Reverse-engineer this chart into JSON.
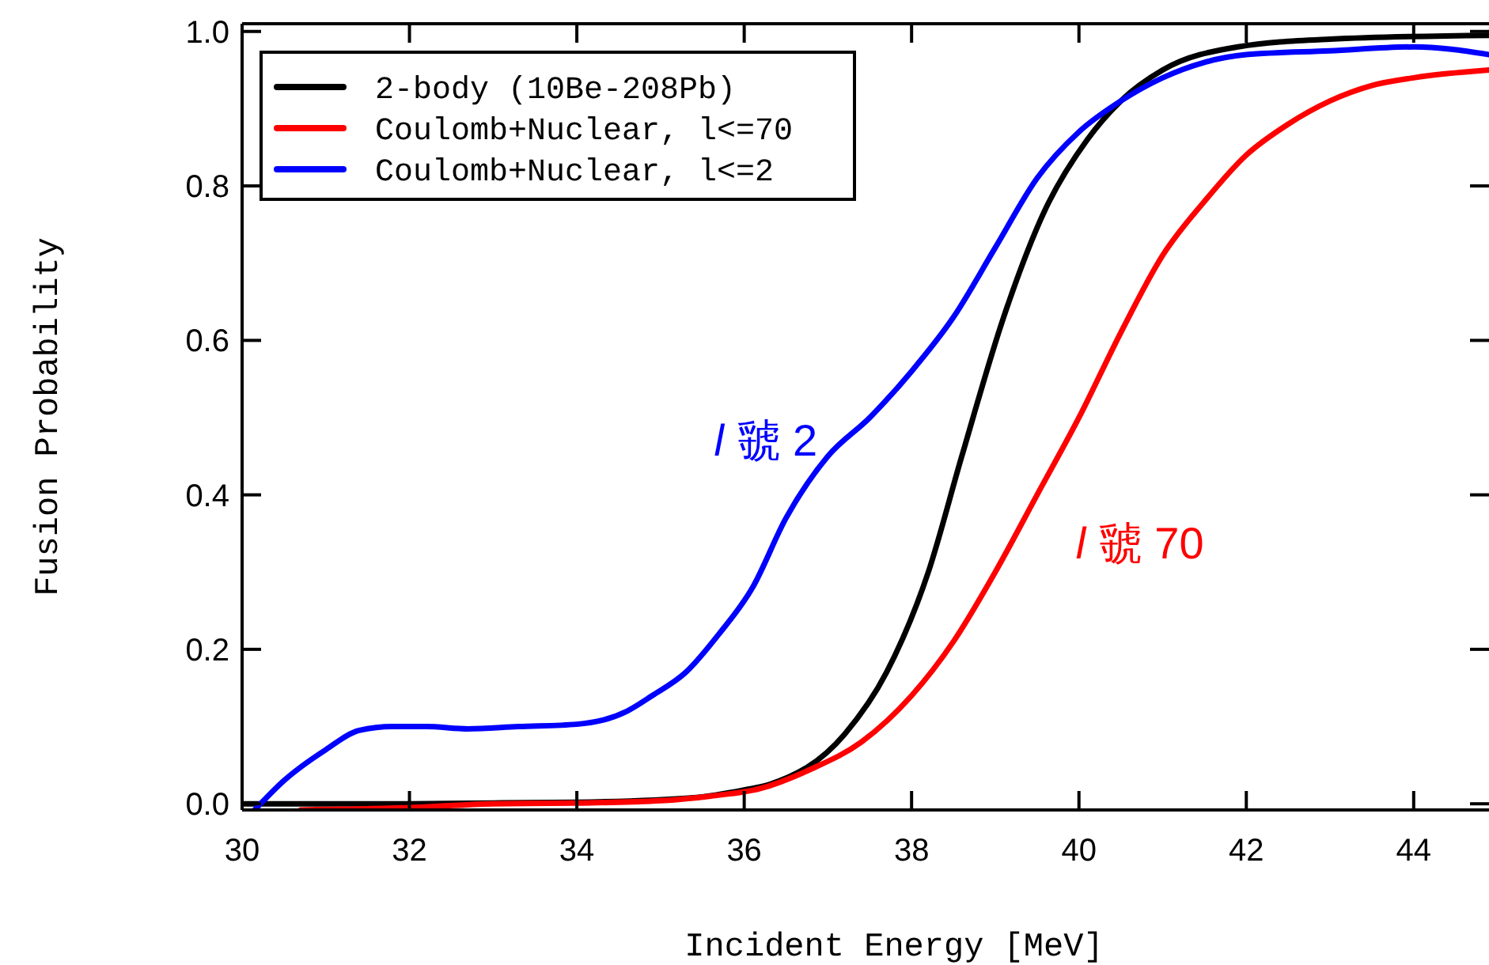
{
  "chart_data": {
    "type": "line",
    "xlabel": "Incident Energy [MeV]",
    "ylabel": "Fusion Probability",
    "xlim": [
      30,
      44.9
    ],
    "ylim": [
      -0.008,
      1.01
    ],
    "xticks": [
      30,
      32,
      34,
      36,
      38,
      40,
      42,
      44
    ],
    "yticks": [
      {
        "value": 0,
        "label": "0.0"
      },
      {
        "value": 0.2,
        "label": "0.2"
      },
      {
        "value": 0.4,
        "label": "0.4"
      },
      {
        "value": 0.6,
        "label": "0.6"
      },
      {
        "value": 0.8,
        "label": "0.8"
      },
      {
        "value": 1,
        "label": "1.0"
      }
    ],
    "legend": "top left",
    "grid": false,
    "line_style": "solid",
    "marker": "none",
    "series": [
      {
        "name": "2-body (10Be-208Pb)",
        "color": "#000000",
        "x": [
          30,
          31,
          32,
          33,
          34,
          35.4,
          36,
          36.3,
          37.2,
          37.7,
          38.2,
          38.6,
          39.1,
          39.6,
          40.1,
          40.5,
          41,
          41.9,
          43,
          44.9
        ],
        "values": [
          0,
          0,
          0,
          0.001,
          0.002,
          0.008,
          0.018,
          0.025,
          0.09,
          0.17,
          0.3,
          0.45,
          0.63,
          0.77,
          0.86,
          0.91,
          0.95,
          0.98,
          0.99,
          0.995
        ]
      },
      {
        "name": "Coulomb+Nuclear, l<=70",
        "color": "#ff0000",
        "x": [
          30.7,
          32,
          33,
          34,
          35,
          35.6,
          36.2,
          36.8,
          37.4,
          38,
          38.5,
          39,
          39.5,
          40,
          40.5,
          41,
          41.5,
          42,
          42.5,
          43,
          43.5,
          44,
          44.9
        ],
        "values": [
          -0.008,
          -0.005,
          0,
          0.001,
          0.004,
          0.01,
          0.02,
          0.045,
          0.08,
          0.14,
          0.21,
          0.3,
          0.4,
          0.5,
          0.61,
          0.71,
          0.78,
          0.84,
          0.88,
          0.91,
          0.93,
          0.94,
          0.95
        ]
      },
      {
        "name": "Coulomb+Nuclear, l<=2",
        "color": "#0000ff",
        "x": [
          30.15,
          30.5,
          31,
          31.4,
          31.8,
          32.2,
          32.7,
          33.3,
          34,
          34.3,
          34.6,
          34.9,
          35.3,
          35.7,
          36.1,
          36.5,
          37,
          37.5,
          38,
          38.5,
          39,
          39.5,
          40,
          40.5,
          41,
          41.5,
          42,
          43,
          44,
          44.9
        ],
        "values": [
          -0.008,
          0.03,
          0.07,
          0.095,
          0.1,
          0.1,
          0.097,
          0.1,
          0.103,
          0.108,
          0.12,
          0.14,
          0.17,
          0.22,
          0.28,
          0.37,
          0.45,
          0.5,
          0.56,
          0.63,
          0.72,
          0.81,
          0.87,
          0.91,
          0.94,
          0.96,
          0.97,
          0.975,
          0.98,
          0.97
        ]
      }
    ],
    "annotations": [
      "l 虢 2",
      "l 虢 70"
    ]
  }
}
